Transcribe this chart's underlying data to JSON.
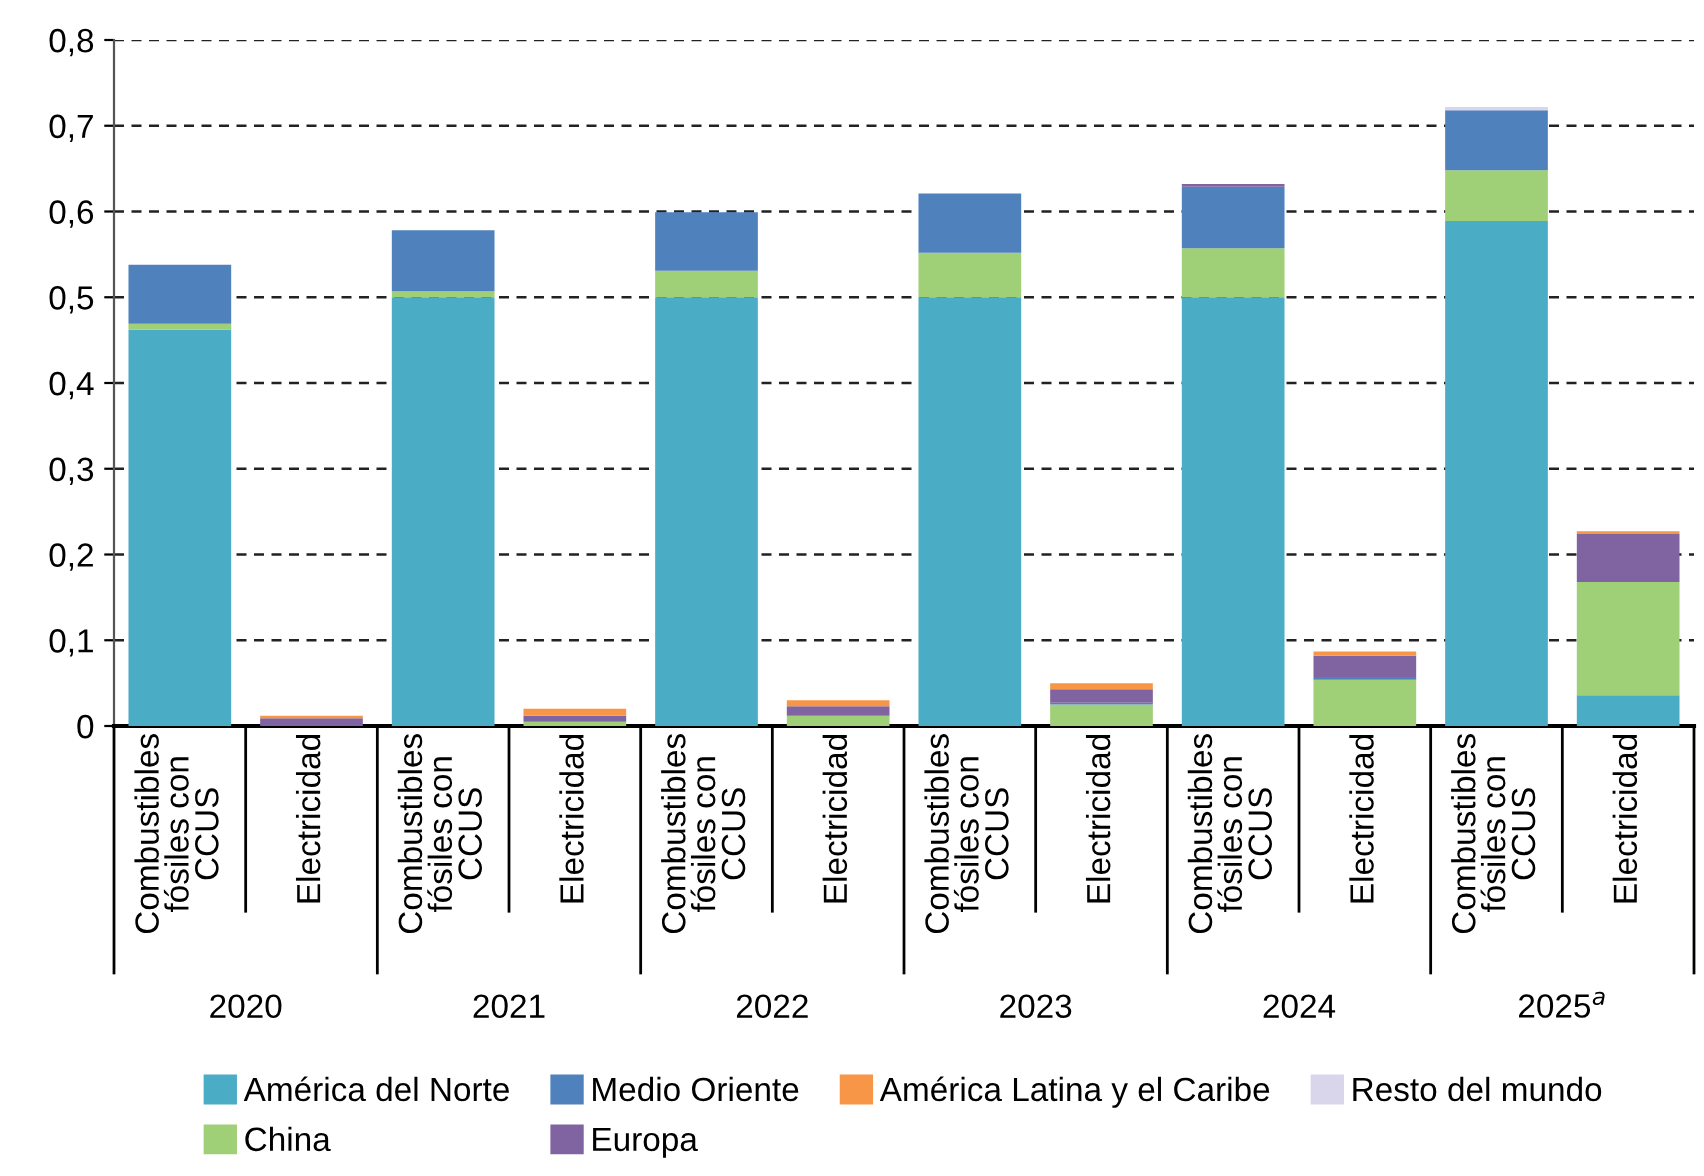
{
  "chart_data": {
    "type": "bar",
    "stacked": true,
    "categories": [
      "Combustibles\nfósiles con\nCCUS",
      "Electricidad",
      "Combustibles\nfósiles con\nCCUS",
      "Electricidad",
      "Combustibles\nfósiles con\nCCUS",
      "Electricidad",
      "Combustibles\nfósiles con\nCCUS",
      "Electricidad",
      "Combustibles\nfósiles con\nCCUS",
      "Electricidad",
      "Combustibles\nfósiles con\nCCUS",
      "Electricidad"
    ],
    "series": [
      {
        "name": "América del Norte",
        "color": "#4bacc6",
        "values": [
          0.462,
          0,
          0.5,
          0,
          0.5,
          0,
          0.5,
          0,
          0.5,
          0,
          0.589,
          0.036
        ]
      },
      {
        "name": "China",
        "color": "#9fcf77",
        "values": [
          0.007,
          0,
          0.007,
          0.005,
          0.031,
          0.012,
          0.052,
          0.025,
          0.057,
          0.054,
          0.059,
          0.132
        ]
      },
      {
        "name": "Medio Oriente",
        "color": "#4f81bd",
        "values": [
          0.069,
          0,
          0.071,
          0,
          0.068,
          0,
          0.069,
          0.002,
          0.072,
          0.003,
          0.07,
          0
        ]
      },
      {
        "name": "Europa",
        "color": "#8064a2",
        "values": [
          0,
          0.009,
          0,
          0.007,
          0,
          0.011,
          0,
          0.016,
          0.003,
          0.025,
          0,
          0.056
        ]
      },
      {
        "name": "América Latina y el Caribe",
        "color": "#f79646",
        "values": [
          0,
          0.003,
          0,
          0.008,
          0,
          0.007,
          0,
          0.007,
          0,
          0.005,
          0,
          0.003
        ]
      },
      {
        "name": "Resto del mundo",
        "color": "#d9d5ea",
        "values": [
          0,
          0,
          0,
          0,
          0,
          0,
          0,
          0,
          0,
          0,
          0.004,
          0
        ]
      }
    ],
    "ylim": [
      0,
      0.8
    ],
    "yticks": [
      {
        "value": 0,
        "label": "0"
      },
      {
        "value": 0.1,
        "label": "0,1"
      },
      {
        "value": 0.2,
        "label": "0,2"
      },
      {
        "value": 0.3,
        "label": "0,3"
      },
      {
        "value": 0.4,
        "label": "0,4"
      },
      {
        "value": 0.5,
        "label": "0,5"
      },
      {
        "value": 0.6,
        "label": "0,6"
      },
      {
        "value": 0.7,
        "label": "0,7"
      },
      {
        "value": 0.8,
        "label": "0,8"
      }
    ],
    "grid": "y",
    "legend": "bottom",
    "annotations": [
      "2020",
      "2021",
      "2022",
      "2023",
      "2024",
      "2025$^{a}$"
    ]
  }
}
